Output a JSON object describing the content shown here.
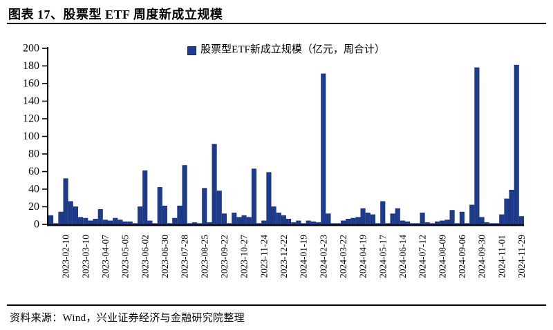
{
  "title": "图表 17、股票型 ETF 周度新成立规模",
  "source": "资料来源：Wind，兴业证券经济与金融研究院整理",
  "chart_data": {
    "type": "bar",
    "legend": "股票型ETF新成立规模（亿元，周合计）",
    "legend_position": "top-center",
    "grid": false,
    "ylim": [
      0,
      200
    ],
    "ytick_step": 20,
    "bar_color": "#1e3c8f",
    "bar_outline": "#122a66",
    "axis_color": "#000000",
    "x_tick_labels": [
      "2023-02-10",
      "2023-03-10",
      "2023-04-07",
      "2023-05-05",
      "2023-06-02",
      "2023-06-30",
      "2023-07-28",
      "2023-08-25",
      "2023-09-22",
      "2023-10-27",
      "2023-11-24",
      "2023-12-22",
      "2024-01-19",
      "2024-02-23",
      "2024-03-22",
      "2024-04-19",
      "2024-05-17",
      "2024-06-14",
      "2024-07-12",
      "2024-08-09",
      "2024-09-06",
      "2024-09-30",
      "2024-11-01",
      "2024-11-29"
    ],
    "x_label_start_index": 3,
    "x_label_every": 4,
    "values": [
      10,
      1,
      14,
      52,
      26,
      20,
      8,
      7,
      4,
      6,
      17,
      5,
      4,
      7,
      5,
      3,
      3,
      1,
      20,
      61,
      4,
      1,
      42,
      21,
      1,
      7,
      21,
      67,
      1,
      2,
      1,
      41,
      2,
      91,
      38,
      12,
      1,
      13,
      8,
      10,
      8,
      63,
      1,
      4,
      59,
      20,
      13,
      10,
      6,
      2,
      4,
      1,
      4,
      3,
      2,
      171,
      12,
      1,
      1,
      4,
      6,
      7,
      8,
      18,
      13,
      11,
      1,
      26,
      1,
      12,
      18,
      4,
      3,
      1,
      1,
      13,
      2,
      1,
      3,
      4,
      5,
      16,
      1,
      14,
      1,
      22,
      178,
      8,
      2,
      1,
      1,
      11,
      29,
      39,
      181,
      9
    ]
  }
}
